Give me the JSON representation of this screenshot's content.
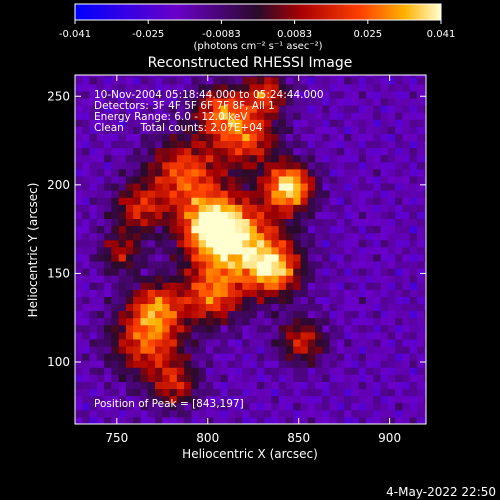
{
  "chart_data": {
    "type": "heatmap",
    "title": "Reconstructed RHESSI Image",
    "xlabel": "Heliocentric X (arcsec)",
    "ylabel": "Heliocentric Y (arcsec)",
    "xlim": [
      727,
      920
    ],
    "ylim": [
      65,
      262
    ],
    "xticks": [
      750,
      800,
      850,
      900
    ],
    "yticks": [
      100,
      150,
      200,
      250
    ],
    "colorbar": {
      "range": [
        -0.041,
        0.041
      ],
      "ticks": [
        "-0.041",
        "-0.025",
        "-0.0083",
        "0.0083",
        "0.025",
        "0.041"
      ],
      "units": "(photons cm⁻² s⁻¹ asec⁻²)"
    },
    "annotations": [
      "10-Nov-2004 05:18:44.000 to 05:24:44.000",
      "Detectors: 3F 4F 5F 6F 7F 8F, All 1",
      "Energy Range: 6.0 - 12.0 keV",
      "Clean     Total counts: 2.07E+04"
    ],
    "peak_label": "Position of Peak = [843,197]",
    "peak": [
      843,
      197
    ],
    "blobs": [
      [
        843,
        197,
        9,
        0.041
      ],
      [
        815,
        165,
        18,
        0.03
      ],
      [
        800,
        175,
        12,
        0.026
      ],
      [
        835,
        150,
        10,
        0.024
      ],
      [
        785,
        205,
        14,
        0.022
      ],
      [
        820,
        225,
        12,
        0.02
      ],
      [
        805,
        240,
        10,
        0.02
      ],
      [
        765,
        110,
        14,
        0.022
      ],
      [
        770,
        130,
        10,
        0.017
      ],
      [
        850,
        110,
        9,
        0.015
      ],
      [
        760,
        185,
        10,
        0.014
      ],
      [
        780,
        85,
        9,
        0.012
      ],
      [
        800,
        135,
        11,
        0.018
      ],
      [
        750,
        160,
        8,
        0.01
      ],
      [
        830,
        250,
        8,
        0.018
      ]
    ]
  },
  "footer_date": "4-May-2022 22:50"
}
